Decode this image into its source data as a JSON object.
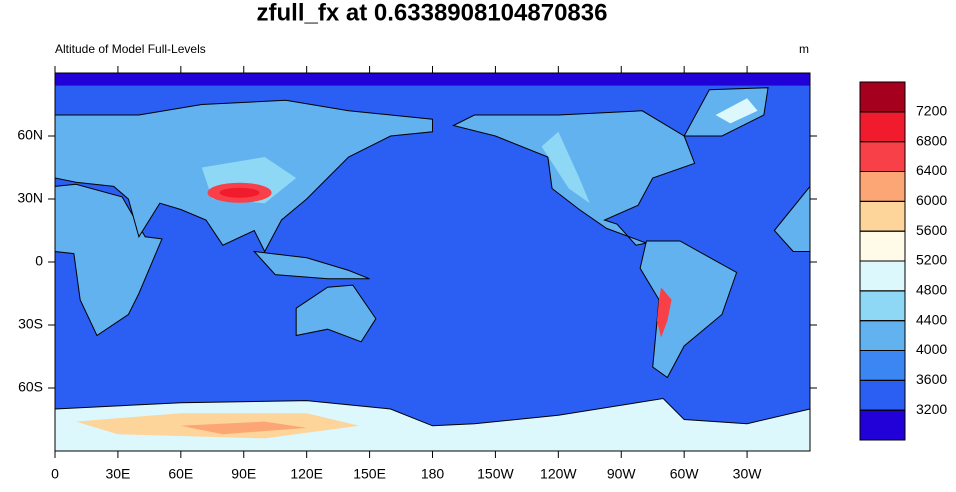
{
  "chart_data": {
    "type": "contour-map",
    "title": "zfull_fx at 0.6338908104870836",
    "subtitle": "Altitude of Model Full-Levels",
    "units": "m",
    "xlim": [
      0,
      360
    ],
    "ylim": [
      -90,
      90
    ],
    "xticks": [
      0,
      {
        "value": 30,
        "label": "30E"
      },
      {
        "value": 60,
        "label": "60E"
      },
      {
        "value": 90,
        "label": "90E"
      },
      {
        "value": 120,
        "label": "120E"
      },
      {
        "value": 150,
        "label": "150E"
      },
      180,
      {
        "value": 210,
        "label": "150W"
      },
      {
        "value": 240,
        "label": "120W"
      },
      {
        "value": 270,
        "label": "90W"
      },
      {
        "value": 300,
        "label": "60W"
      },
      {
        "value": 330,
        "label": "30W"
      }
    ],
    "yticks": [
      {
        "value": 60,
        "label": "60N"
      },
      {
        "value": 30,
        "label": "30N"
      },
      0,
      {
        "value": -30,
        "label": "30S"
      },
      {
        "value": -60,
        "label": "60S"
      }
    ],
    "colorbar": {
      "levels": [
        3200,
        3600,
        4000,
        4400,
        4800,
        5200,
        5600,
        6000,
        6400,
        6800,
        7200
      ],
      "colors": [
        "#2200d8",
        "#2b5ef2",
        "#3c86f4",
        "#62b2f0",
        "#8ed7f5",
        "#dcf8fd",
        "#fffbe8",
        "#fdd49a",
        "#fba674",
        "#f84048",
        "#f01c2e",
        "#a5001e"
      ]
    }
  }
}
